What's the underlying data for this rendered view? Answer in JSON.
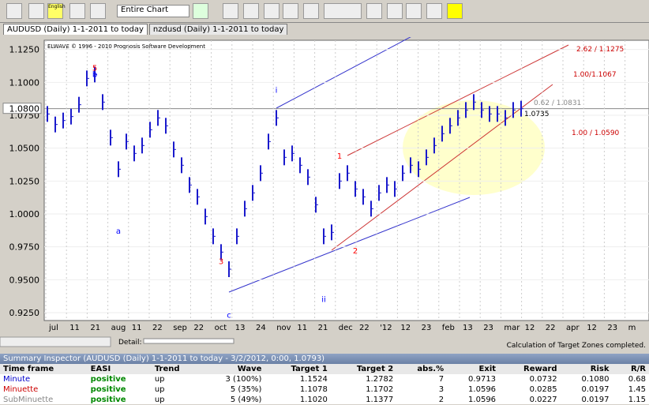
{
  "toolbar": {
    "range": "Entire Chart",
    "logo": "English"
  },
  "tabs": [
    "AUDUSD (Daily)  1-1-2011 to today",
    "nzdusd (Daily)  1-1-2011 to today"
  ],
  "chart": {
    "copyright": "ELWAVE © 1996 - 2010  Prognosis Software Development",
    "ylim": [
      0.919,
      1.132
    ],
    "yticks": [
      {
        "value": 1.125,
        "label": "1.1250"
      },
      {
        "value": 1.1,
        "label": "1.1000"
      },
      {
        "value": 1.075,
        "label": "1.0750"
      },
      {
        "value": 1.05,
        "label": "1.0500"
      },
      {
        "value": 1.025,
        "label": "1.0250"
      },
      {
        "value": 1.0,
        "label": "1.0000"
      },
      {
        "value": 0.975,
        "label": "0.9750"
      },
      {
        "value": 0.95,
        "label": "0.9500"
      },
      {
        "value": 0.925,
        "label": "0.9250"
      }
    ],
    "last_price": {
      "value": 1.08,
      "label": "1.0800"
    },
    "xlabels": [
      "jul",
      "11",
      "21",
      "aug",
      "11",
      "22",
      "sep",
      "22",
      "oct",
      "13",
      "24",
      "nov",
      "11",
      "21",
      "dec",
      "22",
      "'12",
      "12",
      "23",
      "feb",
      "13",
      "23",
      "mar",
      "12",
      "22",
      "apr",
      "12",
      "23",
      "m"
    ],
    "closes": [
      1.076,
      1.068,
      1.071,
      1.074,
      1.083,
      1.103,
      1.106,
      1.085,
      1.058,
      1.034,
      1.055,
      1.046,
      1.052,
      1.064,
      1.073,
      1.067,
      1.049,
      1.037,
      1.022,
      1.013,
      0.998,
      0.983,
      0.971,
      0.958,
      0.983,
      1.004,
      1.016,
      1.031,
      1.055,
      1.073,
      1.043,
      1.046,
      1.037,
      1.028,
      1.007,
      0.983,
      0.986,
      1.025,
      1.031,
      1.019,
      1.013,
      1.004,
      1.016,
      1.022,
      1.019,
      1.031,
      1.037,
      1.034,
      1.043,
      1.052,
      1.061,
      1.067,
      1.073,
      1.079,
      1.085,
      1.079,
      1.076,
      1.076,
      1.073,
      1.079,
      1.08
    ],
    "wave_labels": [
      {
        "text": "5",
        "price": 1.109,
        "color": "red"
      },
      {
        "text": "b",
        "price": 1.104,
        "color": "blue"
      },
      {
        "text": "a",
        "price": 0.985,
        "color": "blue"
      },
      {
        "text": "3",
        "price": 0.962,
        "color": "red"
      },
      {
        "text": "c",
        "price": 0.921,
        "color": "blue"
      },
      {
        "text": "i",
        "price": 1.092,
        "color": "blue"
      },
      {
        "text": "ii",
        "price": 0.933,
        "color": "blue"
      },
      {
        "text": "1",
        "price": 1.042,
        "color": "red"
      },
      {
        "text": "2",
        "price": 0.97,
        "color": "red"
      }
    ],
    "targets": [
      "1.0735",
      "0.62 / 1.0831",
      "1.00 / 1.0590",
      "1.00/1.1067",
      "2.62 / 1.1275"
    ]
  },
  "detail_label": "Detail:",
  "status": "Calculation of Target Zones completed.",
  "summary": {
    "title": "Summary Inspector (AUDUSD (Daily) 1-1-2011 to today - 3/2/2012, 0:00, 1.0793)",
    "columns": [
      "Time frame",
      "EASI",
      "Trend",
      "Wave",
      "Target 1",
      "Target 2",
      "abs.%",
      "Exit",
      "Reward",
      "Risk",
      "R/R"
    ],
    "rows": [
      [
        "Minute",
        "positive",
        "up",
        "3 (100%)",
        "1.1524",
        "1.2782",
        "7",
        "0.9713",
        "0.0732",
        "0.1080",
        "0.68"
      ],
      [
        "Minuette",
        "positive",
        "up",
        "5 (35%)",
        "1.1078",
        "1.1702",
        "3",
        "1.0596",
        "0.0285",
        "0.0197",
        "1.45"
      ],
      [
        "SubMinuette",
        "positive",
        "up",
        "5 (49%)",
        "1.1020",
        "1.1377",
        "2",
        "1.0596",
        "0.0227",
        "0.0197",
        "1.15"
      ]
    ]
  }
}
